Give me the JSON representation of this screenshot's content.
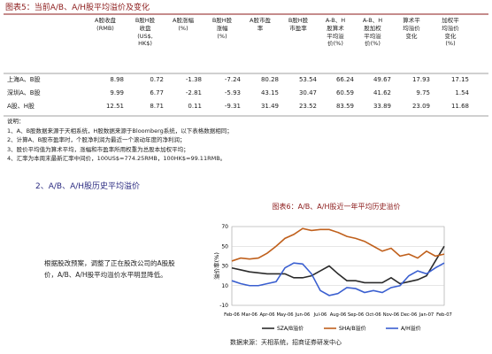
{
  "header": {
    "title": "图表5：当前A/B、A/H股平均溢价及变化"
  },
  "table": {
    "columns": [
      "A股收盘\n(RMB)",
      "B股H股\n收盘\n(US$,\nHK$)",
      "A股涨幅\n(%)",
      "B股H股\n涨幅\n(%)",
      "A股市盈\n率",
      "B股H股\n市盈率",
      "A-B、H\n股算术\n平均溢\n价(%)",
      "A-B、H\n股加权\n平均溢\n价(%)",
      "算术平\n均溢价\n变化",
      "加权平\n均溢价\n变化\n(%)"
    ],
    "rows": [
      [
        "上海A、B股",
        "8.98",
        "0.72",
        "-1.38",
        "-7.24",
        "80.28",
        "53.54",
        "66.24",
        "49.67",
        "17.93",
        "17.15"
      ],
      [
        "深圳A、B股",
        "9.99",
        "6.77",
        "-2.81",
        "-5.93",
        "43.15",
        "30.47",
        "60.59",
        "41.62",
        "9.75",
        "1.54"
      ],
      [
        "A股、H股",
        "12.51",
        "8.71",
        "0.11",
        "-9.31",
        "31.49",
        "23.52",
        "83.59",
        "33.89",
        "23.09",
        "11.68"
      ]
    ]
  },
  "notes": [
    "说明：",
    "1、A、B股数据来源于天相系统，H股数据来源于Bloomberg系统，以下表格数据相同；",
    "2、计算A、B股市盈率时，个股净利润为最近一个滚动年度的净利润；",
    "3、股价平均值为算术平均，涨幅和市盈率所用权重为总股本加权平均；",
    "4、汇率为本周末最新汇率中间价，100US$=774.25RMB，100HK$=99.11RMB。"
  ],
  "section": {
    "heading": "2、A/B、A/H股历史平均溢价",
    "paragraph": "根据股改预案，调整了正在股改公司的A股股价，A/B、A/H股平均溢价水平明显降低。"
  },
  "chart_data": {
    "type": "line",
    "title": "图表6：A/B、A/H股近一年平均历史溢价",
    "ylabel": "溢价率(%)",
    "categories": [
      "Feb-06",
      null,
      "Mar-06",
      null,
      "Apr-06",
      null,
      "May-06",
      null,
      "Jun-06",
      null,
      "Jul-06",
      null,
      "Aug-06",
      null,
      "Sep-06",
      null,
      "Oct-06",
      null,
      "Nov-06",
      null,
      "Dec-06",
      null,
      "Jan-07",
      null,
      "Feb-07"
    ],
    "ylim": [
      -10,
      70
    ],
    "yticks": [
      -10,
      10,
      30,
      50,
      70
    ],
    "grid": true,
    "series": [
      {
        "name": "SZA/B溢价",
        "color": "#2b2b2b",
        "values": [
          28,
          26,
          24,
          23,
          22,
          22,
          22,
          18,
          18,
          20,
          25,
          30,
          22,
          15,
          15,
          13,
          13,
          13,
          18,
          12,
          14,
          16,
          20,
          35,
          50
        ]
      },
      {
        "name": "SHA/B溢价",
        "color": "#c0601c",
        "values": [
          35,
          38,
          37,
          38,
          43,
          50,
          58,
          62,
          68,
          66,
          67,
          67,
          64,
          60,
          58,
          55,
          50,
          45,
          48,
          40,
          42,
          38,
          45,
          40,
          42
        ]
      },
      {
        "name": "A/H溢价",
        "color": "#3a5fd0",
        "values": [
          15,
          12,
          10,
          10,
          12,
          14,
          28,
          33,
          32,
          22,
          5,
          0,
          2,
          8,
          7,
          3,
          5,
          3,
          8,
          10,
          20,
          25,
          22,
          28,
          33
        ]
      }
    ]
  },
  "source": "数据来源：天相系统，招商证券研发中心"
}
